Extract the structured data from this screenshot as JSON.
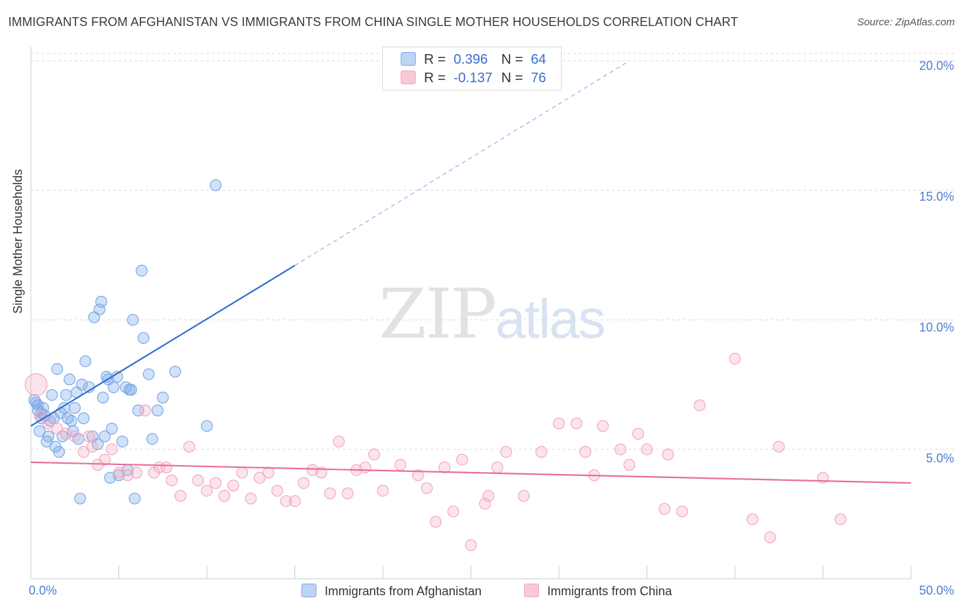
{
  "title": "IMMIGRANTS FROM AFGHANISTAN VS IMMIGRANTS FROM CHINA SINGLE MOTHER HOUSEHOLDS CORRELATION CHART",
  "source": "Source: ZipAtlas.com",
  "watermark": {
    "zip": "ZIP",
    "atlas": "atlas"
  },
  "legend": {
    "rows": [
      {
        "r_label": "R =",
        "r_value": "0.396",
        "n_label": "N =",
        "n_value": "64"
      },
      {
        "r_label": "R =",
        "r_value": "-0.137",
        "n_label": "N =",
        "n_value": "76"
      }
    ]
  },
  "chart_data": {
    "type": "scatter",
    "title": "IMMIGRANTS FROM AFGHANISTAN VS IMMIGRANTS FROM CHINA SINGLE MOTHER HOUSEHOLDS CORRELATION CHART",
    "xlabel": "",
    "ylabel": "Single Mother Households",
    "xlim": [
      0,
      50
    ],
    "ylim": [
      0,
      20.5
    ],
    "x_tick_labels": [
      "0.0%",
      "50.0%"
    ],
    "y_tick_labels": [
      "5.0%",
      "10.0%",
      "15.0%",
      "20.0%"
    ],
    "y_ticks": [
      5,
      10,
      15,
      20
    ],
    "grid": "horizontal dashed",
    "legend_position": "top-center",
    "colors": {
      "afghanistan": "#7aaae8",
      "china": "#f4a7c0",
      "afghanistan_line": "#2f6fd0",
      "china_line": "#e86f9a"
    },
    "series": [
      {
        "name": "Immigrants from Afghanistan",
        "color": "#7aaae8",
        "trend": {
          "x": [
            0,
            15
          ],
          "y": [
            5.9,
            12.1
          ],
          "dashed_extension_to": [
            34,
            20.0
          ]
        },
        "points": [
          [
            0.3,
            6.8
          ],
          [
            0.4,
            6.5
          ],
          [
            0.5,
            5.7
          ],
          [
            0.6,
            6.2
          ],
          [
            0.6,
            6.4
          ],
          [
            0.7,
            6.6
          ],
          [
            0.8,
            6.3
          ],
          [
            0.9,
            5.3
          ],
          [
            1.0,
            5.5
          ],
          [
            1.1,
            6.1
          ],
          [
            1.2,
            7.1
          ],
          [
            1.3,
            6.2
          ],
          [
            1.4,
            5.1
          ],
          [
            1.5,
            8.1
          ],
          [
            1.6,
            4.9
          ],
          [
            1.7,
            6.4
          ],
          [
            1.8,
            5.5
          ],
          [
            1.9,
            6.6
          ],
          [
            2.0,
            7.1
          ],
          [
            2.1,
            6.2
          ],
          [
            2.2,
            7.7
          ],
          [
            2.3,
            6.1
          ],
          [
            2.4,
            5.7
          ],
          [
            2.5,
            6.6
          ],
          [
            2.6,
            7.2
          ],
          [
            2.7,
            5.4
          ],
          [
            2.8,
            3.1
          ],
          [
            2.9,
            7.5
          ],
          [
            3.0,
            6.2
          ],
          [
            3.1,
            8.4
          ],
          [
            3.3,
            7.4
          ],
          [
            3.5,
            5.5
          ],
          [
            3.6,
            10.1
          ],
          [
            3.8,
            5.2
          ],
          [
            3.9,
            10.4
          ],
          [
            4.0,
            10.7
          ],
          [
            4.1,
            7.0
          ],
          [
            4.2,
            5.5
          ],
          [
            4.3,
            7.8
          ],
          [
            4.4,
            7.7
          ],
          [
            4.5,
            3.9
          ],
          [
            4.6,
            5.8
          ],
          [
            4.7,
            7.4
          ],
          [
            4.9,
            7.8
          ],
          [
            5.0,
            4.0
          ],
          [
            5.2,
            5.3
          ],
          [
            5.4,
            7.4
          ],
          [
            5.5,
            4.2
          ],
          [
            5.6,
            7.3
          ],
          [
            5.7,
            7.3
          ],
          [
            5.8,
            10.0
          ],
          [
            5.9,
            3.1
          ],
          [
            6.1,
            6.5
          ],
          [
            6.3,
            11.9
          ],
          [
            6.4,
            9.3
          ],
          [
            6.7,
            7.9
          ],
          [
            6.9,
            5.4
          ],
          [
            7.2,
            6.5
          ],
          [
            7.5,
            7.0
          ],
          [
            8.2,
            8.0
          ],
          [
            10.0,
            5.9
          ],
          [
            0.2,
            6.9
          ],
          [
            0.4,
            6.7
          ],
          [
            10.5,
            15.2
          ]
        ]
      },
      {
        "name": "Immigrants from China",
        "color": "#f4a7c0",
        "trend": {
          "x": [
            0,
            50
          ],
          "y": [
            4.5,
            3.7
          ]
        },
        "points": [
          [
            0.3,
            7.5
          ],
          [
            0.5,
            6.3
          ],
          [
            1.0,
            6.0
          ],
          [
            1.5,
            5.8
          ],
          [
            2.0,
            5.6
          ],
          [
            2.5,
            5.5
          ],
          [
            3.0,
            4.9
          ],
          [
            3.3,
            5.5
          ],
          [
            3.5,
            5.1
          ],
          [
            3.8,
            4.4
          ],
          [
            4.2,
            4.6
          ],
          [
            4.6,
            5.0
          ],
          [
            5.0,
            4.1
          ],
          [
            5.5,
            4.0
          ],
          [
            6.0,
            4.1
          ],
          [
            6.5,
            6.5
          ],
          [
            7.0,
            4.1
          ],
          [
            7.3,
            4.3
          ],
          [
            7.7,
            4.3
          ],
          [
            8.0,
            3.8
          ],
          [
            8.5,
            3.2
          ],
          [
            9.0,
            5.1
          ],
          [
            9.5,
            3.8
          ],
          [
            10.0,
            3.4
          ],
          [
            10.5,
            3.7
          ],
          [
            11.0,
            3.2
          ],
          [
            11.5,
            3.6
          ],
          [
            12.0,
            4.1
          ],
          [
            12.5,
            3.1
          ],
          [
            13.0,
            3.9
          ],
          [
            13.5,
            4.1
          ],
          [
            14.0,
            3.4
          ],
          [
            14.5,
            3.0
          ],
          [
            15.0,
            3.0
          ],
          [
            15.5,
            3.7
          ],
          [
            16.0,
            4.2
          ],
          [
            16.5,
            4.1
          ],
          [
            17.0,
            3.3
          ],
          [
            17.5,
            5.3
          ],
          [
            18.0,
            3.3
          ],
          [
            18.5,
            4.2
          ],
          [
            19.0,
            4.3
          ],
          [
            19.5,
            4.8
          ],
          [
            20.0,
            3.4
          ],
          [
            21.0,
            4.4
          ],
          [
            22.0,
            4.0
          ],
          [
            22.5,
            3.5
          ],
          [
            23.0,
            2.2
          ],
          [
            23.5,
            4.3
          ],
          [
            24.0,
            2.6
          ],
          [
            24.5,
            4.6
          ],
          [
            25.0,
            1.3
          ],
          [
            25.8,
            2.9
          ],
          [
            26.0,
            3.2
          ],
          [
            26.5,
            4.3
          ],
          [
            27.0,
            4.9
          ],
          [
            28.0,
            3.2
          ],
          [
            29.0,
            4.9
          ],
          [
            30.0,
            6.0
          ],
          [
            31.0,
            6.0
          ],
          [
            31.5,
            4.9
          ],
          [
            32.0,
            4.0
          ],
          [
            32.5,
            5.9
          ],
          [
            33.5,
            5.0
          ],
          [
            34.0,
            4.4
          ],
          [
            34.5,
            5.6
          ],
          [
            35.0,
            5.0
          ],
          [
            36.0,
            2.7
          ],
          [
            36.2,
            4.8
          ],
          [
            37.0,
            2.6
          ],
          [
            38.0,
            6.7
          ],
          [
            40.0,
            8.5
          ],
          [
            41.0,
            2.3
          ],
          [
            42.0,
            1.6
          ],
          [
            42.5,
            5.1
          ],
          [
            45.0,
            3.9
          ],
          [
            46.0,
            2.3
          ]
        ]
      }
    ]
  },
  "axes": {
    "ylabel": "Single Mother Households",
    "y_ticks": [
      "5.0%",
      "10.0%",
      "15.0%",
      "20.0%"
    ],
    "x_left": "0.0%",
    "x_right": "50.0%"
  },
  "bottom_legend": {
    "afghanistan": "Immigrants from Afghanistan",
    "china": "Immigrants from China"
  }
}
